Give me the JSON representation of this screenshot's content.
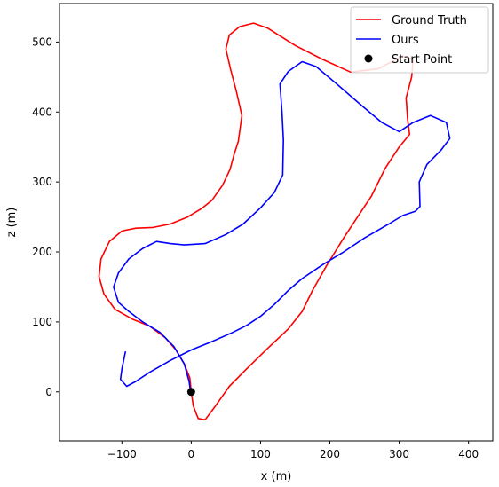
{
  "chart_data": {
    "type": "line",
    "title": "",
    "xlabel": "x (m)",
    "ylabel": "z (m)",
    "xlim": [
      -190,
      435
    ],
    "ylim": [
      -70,
      555
    ],
    "xticks": [
      -100,
      0,
      100,
      200,
      300,
      400
    ],
    "yticks": [
      0,
      100,
      200,
      300,
      400,
      500
    ],
    "grid": false,
    "legend_position": "top-right",
    "series": [
      {
        "name": "Ground Truth",
        "color": "#ff0000",
        "points": [
          [
            0,
            0
          ],
          [
            -2,
            20
          ],
          [
            -10,
            40
          ],
          [
            -22,
            60
          ],
          [
            -38,
            78
          ],
          [
            -60,
            94
          ],
          [
            -85,
            104
          ],
          [
            -110,
            118
          ],
          [
            -126,
            140
          ],
          [
            -133,
            165
          ],
          [
            -130,
            190
          ],
          [
            -118,
            215
          ],
          [
            -100,
            230
          ],
          [
            -80,
            234
          ],
          [
            -55,
            235
          ],
          [
            -30,
            240
          ],
          [
            -5,
            250
          ],
          [
            15,
            262
          ],
          [
            30,
            274
          ],
          [
            45,
            295
          ],
          [
            56,
            318
          ],
          [
            62,
            340
          ],
          [
            68,
            358
          ],
          [
            73,
            395
          ],
          [
            65,
            430
          ],
          [
            57,
            460
          ],
          [
            50,
            490
          ],
          [
            55,
            510
          ],
          [
            70,
            522
          ],
          [
            90,
            527
          ],
          [
            110,
            520
          ],
          [
            150,
            495
          ],
          [
            190,
            475
          ],
          [
            230,
            457
          ],
          [
            270,
            462
          ],
          [
            305,
            480
          ],
          [
            320,
            475
          ],
          [
            318,
            450
          ],
          [
            310,
            420
          ],
          [
            312,
            390
          ],
          [
            315,
            368
          ],
          [
            300,
            350
          ],
          [
            280,
            320
          ],
          [
            260,
            280
          ],
          [
            240,
            250
          ],
          [
            220,
            220
          ],
          [
            195,
            180
          ],
          [
            175,
            145
          ],
          [
            160,
            115
          ],
          [
            140,
            90
          ],
          [
            110,
            62
          ],
          [
            80,
            33
          ],
          [
            55,
            8
          ],
          [
            35,
            -20
          ],
          [
            20,
            -40
          ],
          [
            10,
            -38
          ],
          [
            3,
            -20
          ],
          [
            0,
            0
          ]
        ]
      },
      {
        "name": "Ours",
        "color": "#0000ff",
        "points": [
          [
            -95,
            57
          ],
          [
            -100,
            33
          ],
          [
            -102,
            18
          ],
          [
            -93,
            8
          ],
          [
            -80,
            15
          ],
          [
            -60,
            28
          ],
          [
            -30,
            45
          ],
          [
            0,
            60
          ],
          [
            30,
            72
          ],
          [
            60,
            85
          ],
          [
            80,
            95
          ],
          [
            100,
            108
          ],
          [
            120,
            125
          ],
          [
            140,
            145
          ],
          [
            160,
            162
          ],
          [
            190,
            182
          ],
          [
            220,
            200
          ],
          [
            250,
            220
          ],
          [
            285,
            240
          ],
          [
            305,
            252
          ],
          [
            323,
            258
          ],
          [
            330,
            265
          ],
          [
            329,
            300
          ],
          [
            340,
            325
          ],
          [
            360,
            345
          ],
          [
            373,
            362
          ],
          [
            368,
            385
          ],
          [
            345,
            395
          ],
          [
            320,
            385
          ],
          [
            300,
            372
          ],
          [
            275,
            385
          ],
          [
            245,
            410
          ],
          [
            210,
            440
          ],
          [
            180,
            465
          ],
          [
            160,
            472
          ],
          [
            140,
            458
          ],
          [
            128,
            440
          ],
          [
            131,
            400
          ],
          [
            133,
            360
          ],
          [
            132,
            310
          ],
          [
            120,
            285
          ],
          [
            100,
            263
          ],
          [
            75,
            240
          ],
          [
            50,
            225
          ],
          [
            20,
            212
          ],
          [
            -10,
            210
          ],
          [
            -30,
            212
          ],
          [
            -50,
            215
          ],
          [
            -70,
            205
          ],
          [
            -90,
            190
          ],
          [
            -105,
            170
          ],
          [
            -112,
            150
          ],
          [
            -105,
            128
          ],
          [
            -90,
            115
          ],
          [
            -70,
            100
          ],
          [
            -45,
            85
          ],
          [
            -25,
            65
          ],
          [
            -10,
            40
          ],
          [
            -3,
            15
          ],
          [
            -1,
            0
          ]
        ]
      }
    ],
    "markers": [
      {
        "name": "Start Point",
        "x": 0,
        "y": 0,
        "color": "#000000"
      }
    ]
  }
}
